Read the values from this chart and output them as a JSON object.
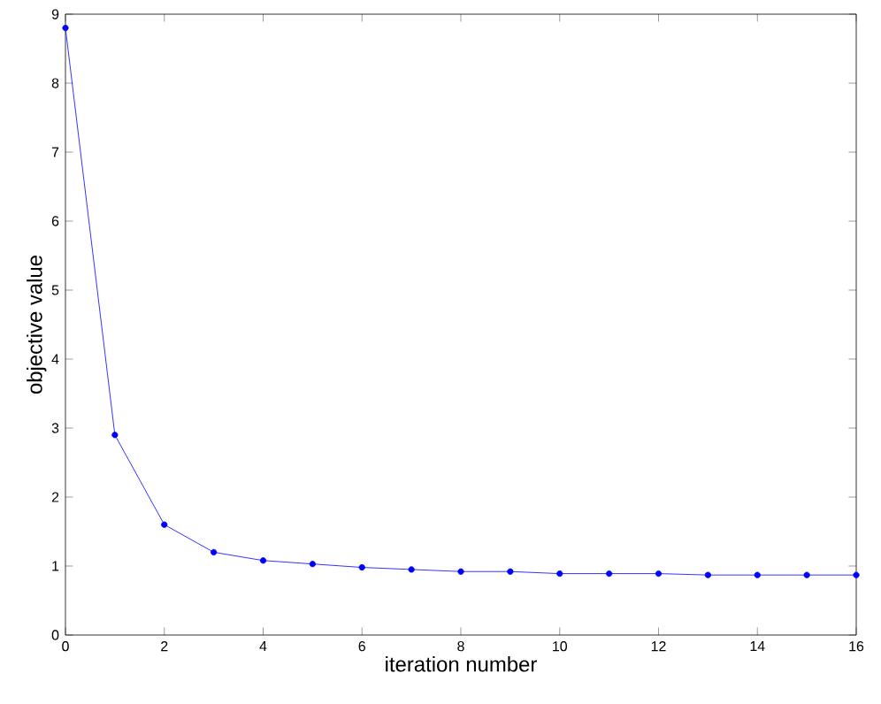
{
  "chart_data": {
    "type": "line",
    "xlabel": "iteration number",
    "ylabel": "objective value",
    "x": [
      0,
      1,
      2,
      3,
      4,
      5,
      6,
      7,
      8,
      9,
      10,
      11,
      12,
      13,
      14,
      15,
      16
    ],
    "series": [
      {
        "color": "#0000ff",
        "values": [
          8.8,
          2.9,
          1.6,
          1.2,
          1.08,
          1.03,
          0.98,
          0.95,
          0.92,
          0.92,
          0.89,
          0.89,
          0.89,
          0.87,
          0.87,
          0.87,
          0.87
        ]
      }
    ],
    "xlim": [
      0,
      16
    ],
    "ylim": [
      0,
      9
    ],
    "xticks": [
      0,
      2,
      4,
      6,
      8,
      10,
      12,
      14,
      16
    ],
    "yticks": [
      0,
      1,
      2,
      3,
      4,
      5,
      6,
      7,
      8,
      9
    ],
    "marker": "circle",
    "line_style": "solid"
  }
}
